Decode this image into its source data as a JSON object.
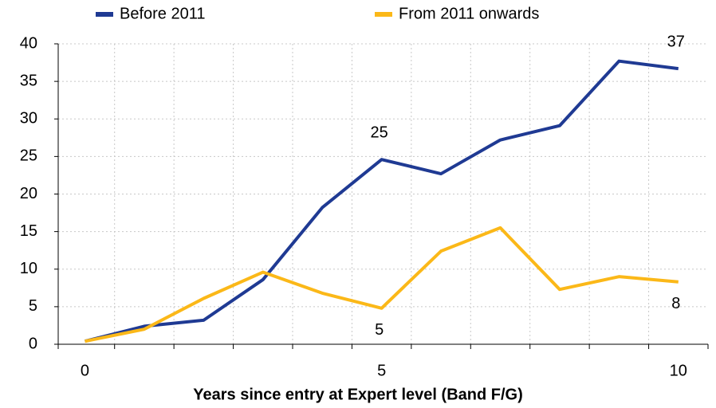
{
  "chart_data": {
    "type": "line",
    "x_label": "Years since entry at Expert level (Band F/G)",
    "x": [
      0,
      1,
      2,
      3,
      4,
      5,
      6,
      7,
      8,
      9,
      10
    ],
    "series": [
      {
        "name": "Before 2011",
        "color": "#1f3a93",
        "values": [
          0.4,
          2.4,
          3.2,
          8.6,
          18.2,
          24.6,
          22.7,
          27.2,
          29.1,
          37.7,
          36.7
        ],
        "value_labels": [
          null,
          null,
          null,
          null,
          null,
          "25",
          null,
          null,
          null,
          null,
          "37"
        ]
      },
      {
        "name": "From 2011 onwards",
        "color": "#fbb818",
        "values": [
          0.4,
          2.0,
          6.1,
          9.6,
          6.8,
          4.8,
          12.4,
          15.5,
          7.3,
          9.0,
          8.3
        ],
        "value_labels": [
          null,
          null,
          null,
          null,
          null,
          "5",
          null,
          null,
          null,
          null,
          "8"
        ]
      }
    ],
    "xlim": [
      -0.45,
      10.5
    ],
    "xticks": [
      0,
      5,
      10
    ],
    "xminor_ticks": [
      -0.45,
      0.5,
      1.5,
      2.5,
      3.5,
      4.5,
      5.5,
      6.5,
      7.5,
      8.5,
      9.5,
      10.5
    ],
    "ylim": [
      0,
      40
    ],
    "yticks": [
      0,
      5,
      10,
      15,
      20,
      25,
      30,
      35,
      40
    ],
    "grid": true,
    "legend": "top"
  }
}
